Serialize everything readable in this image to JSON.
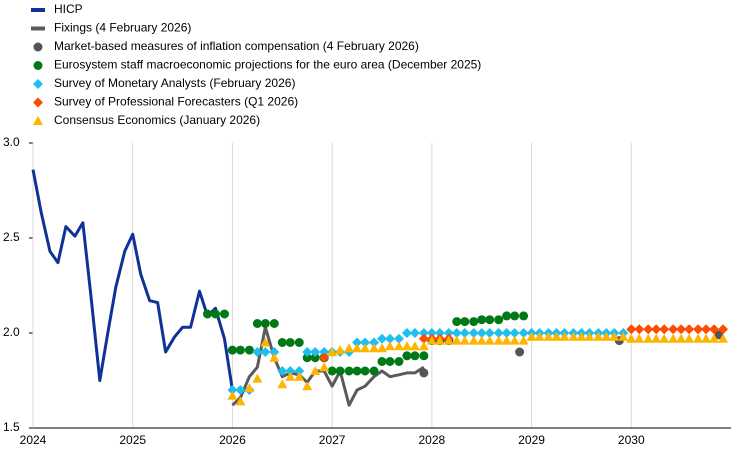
{
  "chart_data": {
    "type": "line",
    "xlim": [
      2024,
      2031
    ],
    "xticks": [
      2024,
      2025,
      2026,
      2027,
      2028,
      2029,
      2030
    ],
    "ylim": [
      1.5,
      3.0
    ],
    "yticks": [
      {
        "value": 1.5,
        "label": "1.5"
      },
      {
        "value": 2.0,
        "label": "2.0"
      },
      {
        "value": 2.5,
        "label": "2.5"
      },
      {
        "value": 3.0,
        "label": "3.0"
      }
    ],
    "grid": true,
    "legend": "top-left",
    "series": [
      {
        "name": "HICP",
        "color": "#0f3296",
        "style": "line",
        "x": [
          2024.0,
          2024.08,
          2024.17,
          2024.25,
          2024.33,
          2024.42,
          2024.5,
          2024.58,
          2024.67,
          2024.75,
          2024.83,
          2024.92,
          2025.0,
          2025.08,
          2025.17,
          2025.25,
          2025.33,
          2025.42,
          2025.5,
          2025.58,
          2025.67,
          2025.75,
          2025.83,
          2025.92,
          2026.0
        ],
        "values": [
          2.86,
          2.64,
          2.43,
          2.37,
          2.56,
          2.51,
          2.58,
          2.2,
          1.75,
          2.0,
          2.24,
          2.43,
          2.52,
          2.31,
          2.17,
          2.16,
          1.9,
          1.98,
          2.03,
          2.03,
          2.22,
          2.09,
          2.13,
          1.97,
          1.7
        ]
      },
      {
        "name": "Fixings (4 February 2026)",
        "color": "#5a5a5a",
        "style": "line",
        "x": [
          2026.0,
          2026.08,
          2026.17,
          2026.25,
          2026.33,
          2026.42,
          2026.5,
          2026.58,
          2026.67,
          2026.75,
          2026.83,
          2026.92,
          2027.0,
          2027.08,
          2027.17,
          2027.25,
          2027.33,
          2027.42,
          2027.5,
          2027.58,
          2027.67,
          2027.75,
          2027.83,
          2027.92
        ],
        "values": [
          1.62,
          1.66,
          1.77,
          1.82,
          2.03,
          1.87,
          1.77,
          1.79,
          1.78,
          1.74,
          1.8,
          1.8,
          1.72,
          1.8,
          1.62,
          1.7,
          1.72,
          1.77,
          1.8,
          1.77,
          1.78,
          1.79,
          1.79,
          1.82
        ]
      },
      {
        "name": "Market-based measures of inflation compensation (4 February 2026)",
        "color": "#555555",
        "style": "circle",
        "x": [
          2026.92,
          2027.92,
          2028.88,
          2029.88,
          2030.88
        ],
        "values": [
          1.87,
          1.79,
          1.9,
          1.96,
          1.99
        ]
      },
      {
        "name": "Eurosystem staff macroeconomic projections for the euro area (December 2025)",
        "color": "#007816",
        "style": "circle",
        "x": [
          2025.75,
          2025.83,
          2025.92,
          2026.0,
          2026.08,
          2026.17,
          2026.25,
          2026.33,
          2026.42,
          2026.5,
          2026.58,
          2026.67,
          2026.75,
          2026.83,
          2026.92,
          2027.0,
          2027.08,
          2027.17,
          2027.25,
          2027.33,
          2027.42,
          2027.5,
          2027.58,
          2027.67,
          2027.75,
          2027.83,
          2027.92,
          2028.0,
          2028.08,
          2028.17,
          2028.25,
          2028.33,
          2028.42,
          2028.5,
          2028.58,
          2028.67,
          2028.75,
          2028.83,
          2028.92
        ],
        "values": [
          2.1,
          2.1,
          2.1,
          1.91,
          1.91,
          1.91,
          2.05,
          2.05,
          2.05,
          1.95,
          1.95,
          1.95,
          1.87,
          1.87,
          1.87,
          1.8,
          1.8,
          1.8,
          1.8,
          1.8,
          1.8,
          1.85,
          1.85,
          1.85,
          1.88,
          1.88,
          1.88,
          1.96,
          1.96,
          1.96,
          2.06,
          2.06,
          2.06,
          2.07,
          2.07,
          2.07,
          2.09,
          2.09,
          2.09
        ]
      },
      {
        "name": "Survey of Monetary Analysts (February 2026)",
        "color": "#1ebef0",
        "style": "diamond",
        "x": [
          2026.0,
          2026.08,
          2026.17,
          2026.25,
          2026.33,
          2026.42,
          2026.5,
          2026.58,
          2026.67,
          2026.75,
          2026.83,
          2026.92,
          2027.0,
          2027.08,
          2027.17,
          2027.25,
          2027.33,
          2027.42,
          2027.5,
          2027.58,
          2027.67,
          2027.75,
          2027.83,
          2027.92,
          2028.0,
          2028.08,
          2028.17,
          2028.25,
          2028.33,
          2028.42,
          2028.5,
          2028.58,
          2028.67,
          2028.75,
          2028.83,
          2028.92,
          2029.0,
          2029.08,
          2029.17,
          2029.25,
          2029.33,
          2029.42,
          2029.5,
          2029.58,
          2029.67,
          2029.75,
          2029.83,
          2029.92
        ],
        "values": [
          1.7,
          1.7,
          1.7,
          1.9,
          1.9,
          1.9,
          1.8,
          1.8,
          1.8,
          1.9,
          1.9,
          1.9,
          1.9,
          1.9,
          1.9,
          1.95,
          1.95,
          1.95,
          1.97,
          1.97,
          1.97,
          2.0,
          2.0,
          2.0,
          2.0,
          2.0,
          2.0,
          2.0,
          2.0,
          2.0,
          2.0,
          2.0,
          2.0,
          2.0,
          2.0,
          2.0,
          2.0,
          2.0,
          2.0,
          2.0,
          2.0,
          2.0,
          2.0,
          2.0,
          2.0,
          2.0,
          2.0,
          2.0
        ]
      },
      {
        "name": "Survey of Professional Forecasters (Q1 2026)",
        "color": "#ff4b00",
        "style": "diamond",
        "x": [
          2026.92,
          2027.92,
          2028.0,
          2028.08,
          2028.17,
          2030.0,
          2030.08,
          2030.17,
          2030.25,
          2030.33,
          2030.42,
          2030.5,
          2030.58,
          2030.67,
          2030.75,
          2030.83,
          2030.92
        ],
        "values": [
          1.87,
          1.97,
          1.97,
          1.97,
          1.97,
          2.02,
          2.02,
          2.02,
          2.02,
          2.02,
          2.02,
          2.02,
          2.02,
          2.02,
          2.02,
          2.02,
          2.02
        ]
      },
      {
        "name": "Consensus Economics (January 2026)",
        "color": "#ffb400",
        "style": "triangle",
        "x": [
          2026.0,
          2026.08,
          2026.17,
          2026.25,
          2026.33,
          2026.42,
          2026.5,
          2026.58,
          2026.67,
          2026.75,
          2026.83,
          2026.92,
          2027.0,
          2027.08,
          2027.17,
          2027.25,
          2027.33,
          2027.42,
          2027.5,
          2027.58,
          2027.67,
          2027.75,
          2027.83,
          2027.92,
          2028.0,
          2028.08,
          2028.17,
          2028.25,
          2028.33,
          2028.42,
          2028.5,
          2028.58,
          2028.67,
          2028.75,
          2028.83,
          2028.92,
          2029.0,
          2029.08,
          2029.17,
          2029.25,
          2029.33,
          2029.42,
          2029.5,
          2029.58,
          2029.67,
          2029.75,
          2029.83,
          2029.92,
          2030.0,
          2030.08,
          2030.17,
          2030.25,
          2030.33,
          2030.42,
          2030.5,
          2030.58,
          2030.67,
          2030.75,
          2030.83,
          2030.92
        ],
        "values": [
          1.67,
          1.64,
          1.71,
          1.76,
          1.95,
          1.87,
          1.73,
          1.77,
          1.77,
          1.72,
          1.8,
          1.82,
          1.9,
          1.91,
          1.92,
          1.92,
          1.92,
          1.92,
          1.92,
          1.93,
          1.93,
          1.93,
          1.93,
          1.93,
          1.96,
          1.96,
          1.96,
          1.96,
          1.96,
          1.96,
          1.96,
          1.96,
          1.96,
          1.96,
          1.96,
          1.96,
          1.98,
          1.98,
          1.98,
          1.98,
          1.98,
          1.98,
          1.98,
          1.98,
          1.98,
          1.98,
          1.98,
          1.98,
          1.97,
          1.97,
          1.97,
          1.97,
          1.97,
          1.97,
          1.97,
          1.97,
          1.97,
          1.97,
          1.97,
          1.97
        ]
      }
    ]
  }
}
